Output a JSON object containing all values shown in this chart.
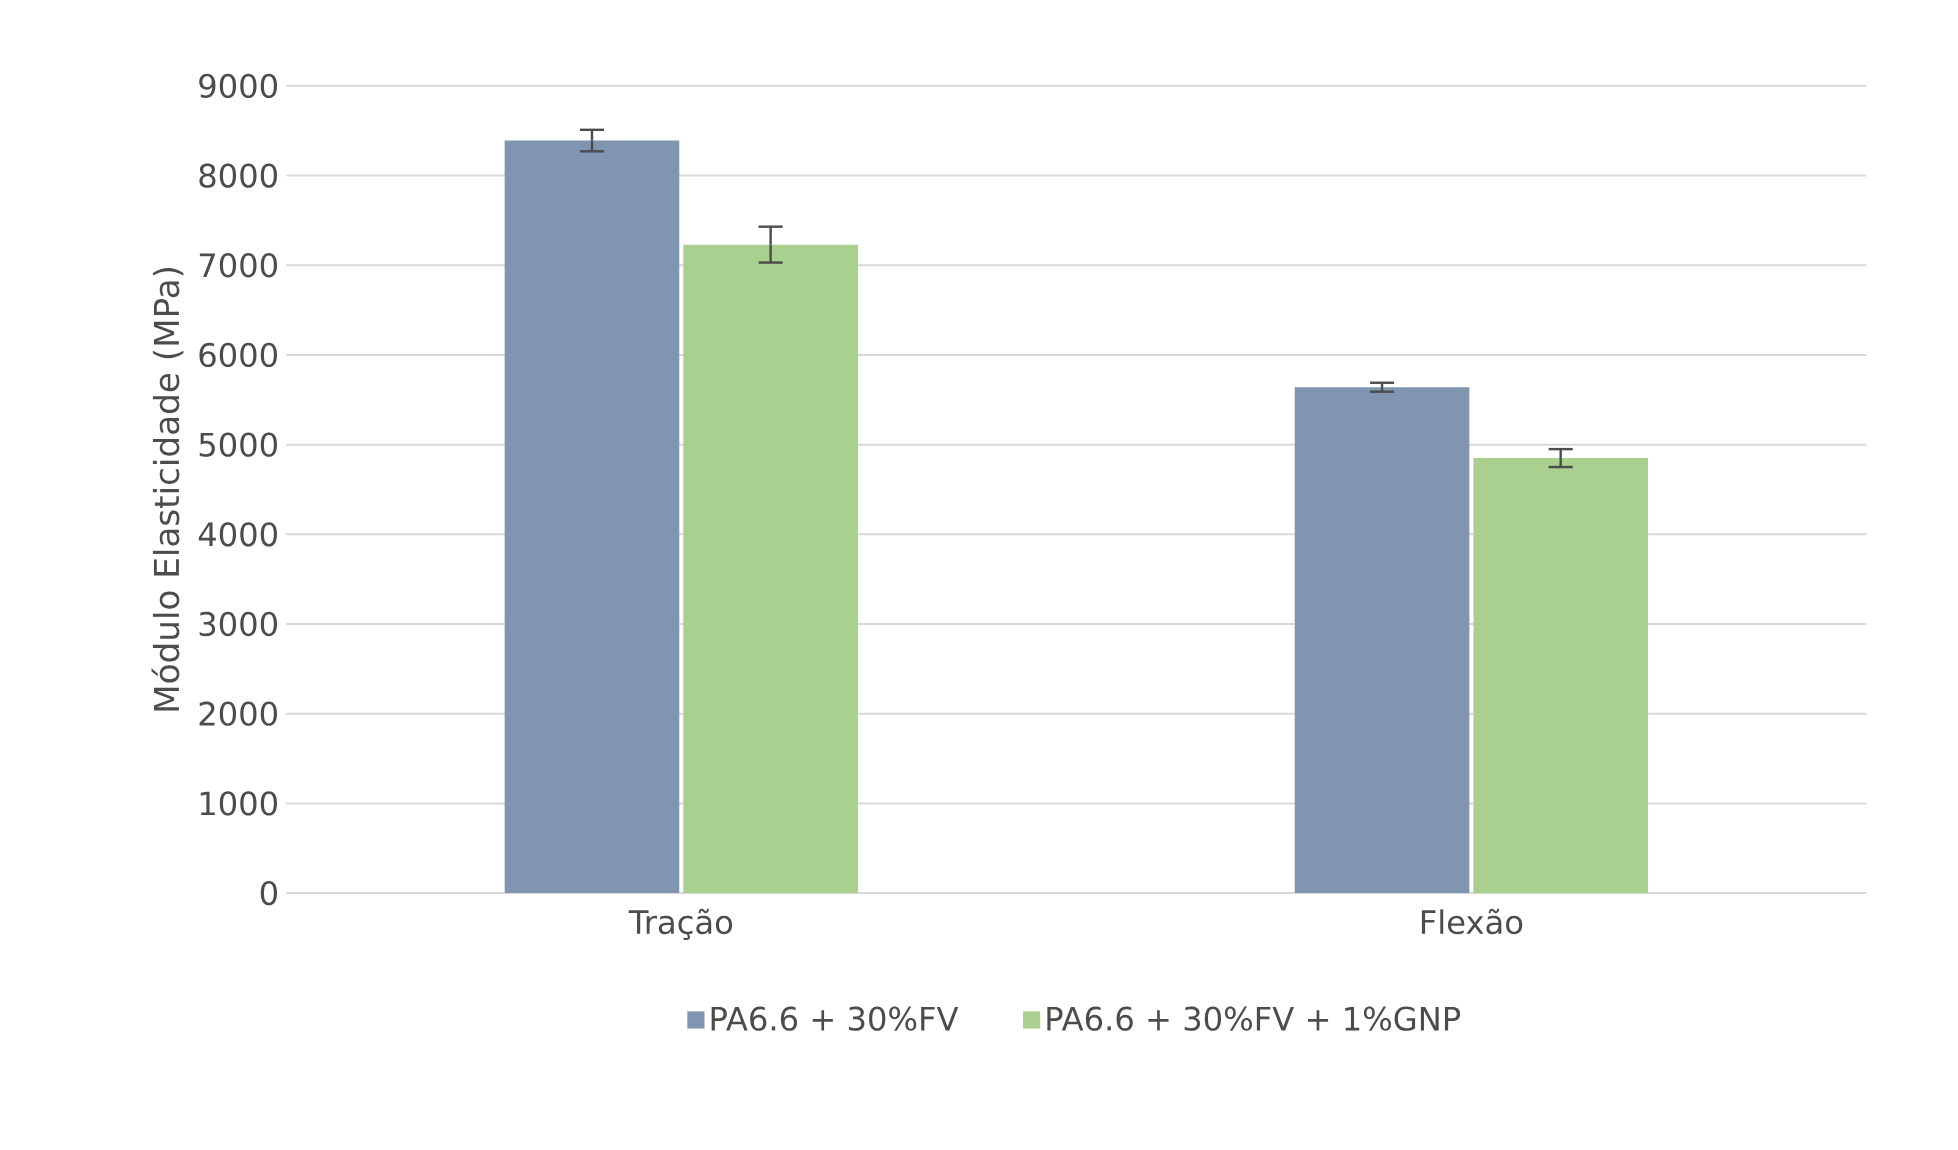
{
  "chart_data": {
    "type": "bar",
    "ylabel": "Módulo Elasticidade (MPa)",
    "categories": [
      "Tração",
      "Flexão"
    ],
    "series": [
      {
        "name": "PA6.6 + 30%FV",
        "color": "#8096b0",
        "values": [
          8390,
          5640
        ],
        "errors": [
          120,
          50
        ]
      },
      {
        "name": "PA6.6 + 30%FV + 1%GNP",
        "color": "#a9d08e",
        "values": [
          7230,
          4850
        ],
        "errors": [
          200,
          100
        ]
      }
    ],
    "ylim": [
      0,
      9000
    ],
    "yticks": [
      0,
      1000,
      2000,
      3000,
      4000,
      5000,
      6000,
      7000,
      8000,
      9000
    ],
    "grid": "y",
    "legend": "bottom"
  }
}
